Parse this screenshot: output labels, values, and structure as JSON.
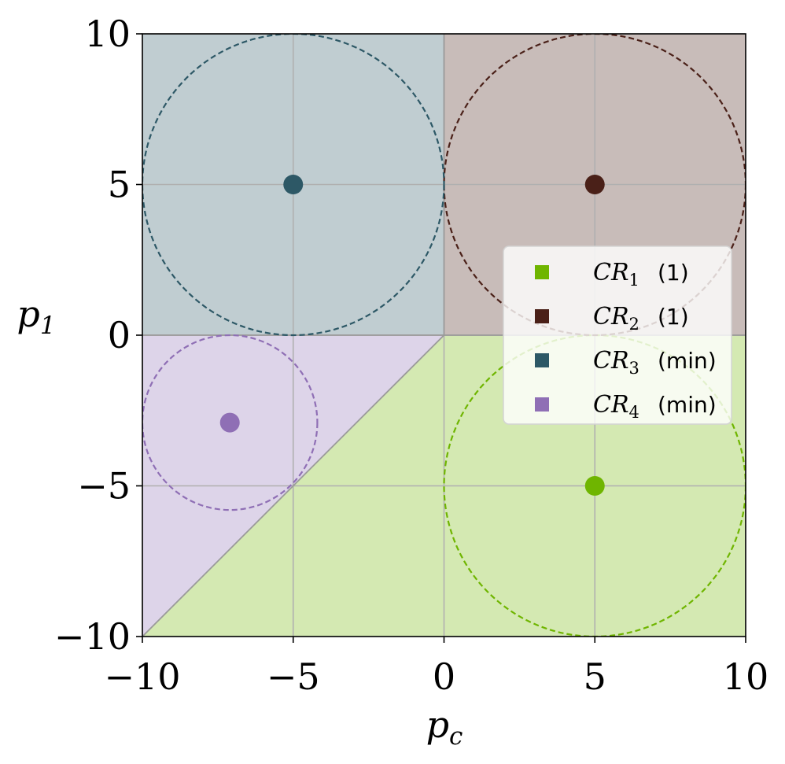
{
  "chart_data": {
    "type": "scatter",
    "xlabel": "p_c",
    "ylabel": "p_1",
    "xlim": [
      -10,
      10
    ],
    "ylim": [
      -10,
      10
    ],
    "xticks": [
      -10,
      -5,
      0,
      5,
      10
    ],
    "yticks": [
      -10,
      -5,
      0,
      5,
      10
    ],
    "x_tick_labels": [
      "−10",
      "−5",
      "0",
      "5",
      "10"
    ],
    "y_tick_labels": [
      "−10",
      "−5",
      "0",
      "5",
      "10"
    ],
    "grid": true,
    "legend_placement": "center-right",
    "regions": [
      {
        "name": "CR_1",
        "color": "#6fb500",
        "polygon": [
          [
            -10,
            -10
          ],
          [
            0,
            0
          ],
          [
            10,
            0
          ],
          [
            10,
            -10
          ]
        ]
      },
      {
        "name": "CR_2",
        "color": "#4a2018",
        "polygon": [
          [
            0,
            0
          ],
          [
            0,
            10
          ],
          [
            10,
            10
          ],
          [
            10,
            0
          ]
        ]
      },
      {
        "name": "CR_3",
        "color": "#2d5866",
        "polygon": [
          [
            -10,
            0
          ],
          [
            -10,
            10
          ],
          [
            0,
            10
          ],
          [
            0,
            0
          ]
        ]
      },
      {
        "name": "CR_4",
        "color": "#8f6fb5",
        "polygon": [
          [
            -10,
            0
          ],
          [
            0,
            0
          ],
          [
            -10,
            -10
          ]
        ]
      }
    ],
    "series": [
      {
        "name": "CR_1",
        "tag": "(1)",
        "color": "#6fb500",
        "center": [
          5,
          -5
        ],
        "radius": 5
      },
      {
        "name": "CR_2",
        "tag": "(1)",
        "color": "#4a2018",
        "center": [
          5,
          5
        ],
        "radius": 5
      },
      {
        "name": "CR_3",
        "tag": "(min)",
        "color": "#2d5866",
        "center": [
          -5,
          5
        ],
        "radius": 5
      },
      {
        "name": "CR_4",
        "tag": "(min)",
        "color": "#8f6fb5",
        "center": [
          -7.1,
          -2.9
        ],
        "radius": 2.9
      }
    ]
  }
}
